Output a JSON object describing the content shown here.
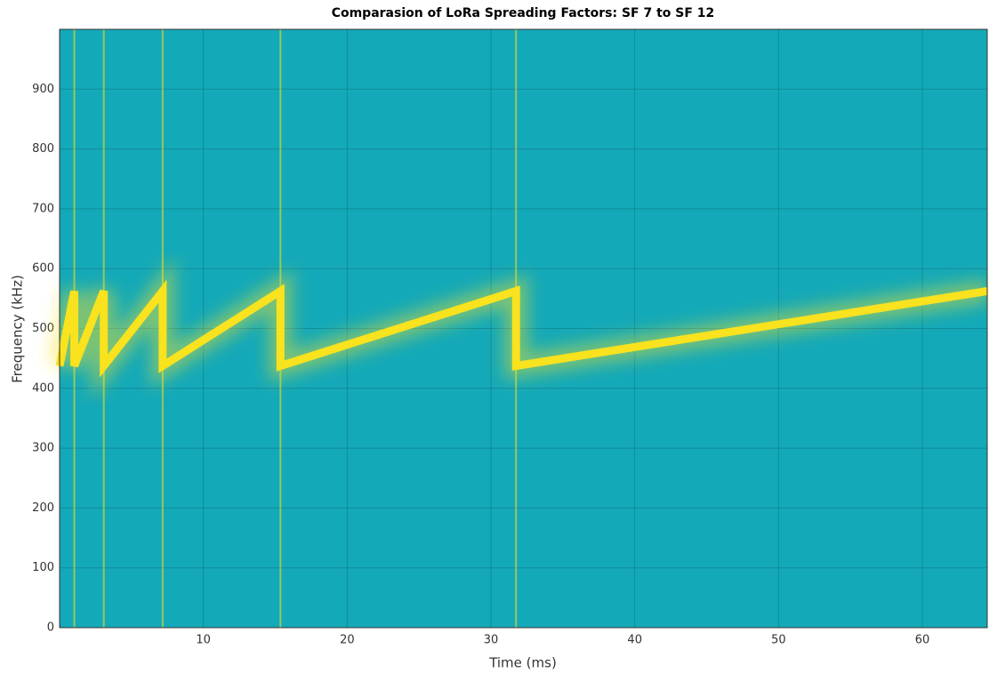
{
  "chart_data": {
    "type": "line",
    "title": "Comparasion of LoRa Spreading Factors: SF 7 to SF 12",
    "x_label": "Time (ms)",
    "y_label": "Frequency (kHz)",
    "x": [
      0,
      1.024,
      1.024,
      3.072,
      3.072,
      7.168,
      7.168,
      15.36,
      15.36,
      31.744,
      31.744,
      64.512
    ],
    "series": [
      {
        "color": "#f9e21e",
        "values": [
          437.5,
          562.5,
          437.5,
          562.5,
          437.5,
          562.5,
          437.5,
          562.5,
          437.5,
          562.5,
          437.5,
          562.5
        ]
      }
    ],
    "background": "#14a9b8",
    "xlim": [
      0,
      64.512
    ],
    "xticks": [
      10,
      20,
      30,
      40,
      50,
      60
    ],
    "ylim": [
      0,
      1000
    ],
    "yticks": [
      0,
      100,
      200,
      300,
      400,
      500,
      600,
      700,
      800,
      900
    ],
    "grid": true
  }
}
